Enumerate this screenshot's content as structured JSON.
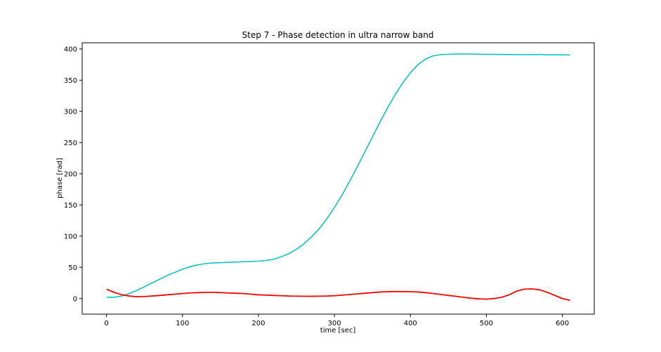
{
  "chart_data": {
    "type": "line",
    "title": "Step 7 - Phase detection in ultra narrow band",
    "xlabel": "time [sec]",
    "ylabel": "phase [rad]",
    "xlim": [
      -32,
      642
    ],
    "ylim": [
      -25,
      410
    ],
    "xticks": [
      0,
      100,
      200,
      300,
      400,
      500,
      600
    ],
    "yticks": [
      0,
      50,
      100,
      150,
      200,
      250,
      300,
      350,
      400
    ],
    "xtick_labels": [
      "0",
      "100",
      "200",
      "300",
      "400",
      "500",
      "600"
    ],
    "ytick_labels": [
      "0",
      "50",
      "100",
      "150",
      "200",
      "250",
      "300",
      "350",
      "400"
    ],
    "grid": false,
    "series": [
      {
        "name": "cyan",
        "color": "#00bfbf",
        "x": [
          0,
          10,
          20,
          30,
          40,
          50,
          60,
          70,
          80,
          90,
          100,
          110,
          120,
          130,
          140,
          150,
          160,
          170,
          180,
          190,
          200,
          210,
          220,
          230,
          240,
          250,
          260,
          270,
          280,
          290,
          300,
          310,
          320,
          330,
          340,
          350,
          360,
          370,
          380,
          390,
          400,
          410,
          420,
          430,
          440,
          450,
          460,
          470,
          480,
          490,
          500,
          510,
          520,
          530,
          540,
          550,
          560,
          570,
          580,
          590,
          600,
          610
        ],
        "y": [
          2,
          2,
          4,
          8,
          13,
          19,
          25,
          31,
          37,
          42,
          47,
          51,
          54,
          56,
          57,
          57.5,
          58,
          58.5,
          59,
          59.5,
          60,
          61,
          63,
          67,
          72,
          79,
          88,
          99,
          112,
          128,
          146,
          166,
          188,
          211,
          235,
          259,
          283,
          306,
          327,
          346,
          362,
          375,
          384,
          389,
          391,
          391.5,
          392,
          392,
          392,
          391.8,
          391.5,
          391.5,
          391.3,
          391.2,
          391,
          391,
          391,
          391,
          390.8,
          390.7,
          390.6,
          390.5
        ]
      },
      {
        "name": "red",
        "color": "#ff0000",
        "x": [
          0,
          10,
          20,
          30,
          40,
          50,
          60,
          70,
          80,
          90,
          100,
          110,
          120,
          130,
          140,
          150,
          160,
          170,
          180,
          190,
          200,
          210,
          220,
          230,
          240,
          250,
          260,
          270,
          280,
          290,
          300,
          310,
          320,
          330,
          340,
          350,
          360,
          370,
          380,
          390,
          400,
          410,
          420,
          430,
          440,
          450,
          460,
          470,
          480,
          490,
          500,
          510,
          520,
          530,
          540,
          550,
          560,
          570,
          580,
          590,
          600,
          610
        ],
        "y": [
          15,
          10,
          6,
          4,
          3,
          3.2,
          4,
          5,
          6,
          7,
          8,
          9,
          9.5,
          10,
          10,
          9.5,
          9,
          8.5,
          8,
          7,
          6,
          5.5,
          5,
          4.5,
          4,
          3.8,
          3.7,
          3.6,
          3.8,
          4,
          4.5,
          5.5,
          6.5,
          7.5,
          8.5,
          9.5,
          10.5,
          11,
          11.2,
          11.2,
          11,
          10.5,
          9.5,
          8,
          6.5,
          5,
          3.5,
          2,
          0.5,
          -0.5,
          -1,
          0,
          2,
          6,
          12,
          15,
          15.5,
          14,
          10,
          5,
          0,
          -3
        ]
      }
    ]
  }
}
